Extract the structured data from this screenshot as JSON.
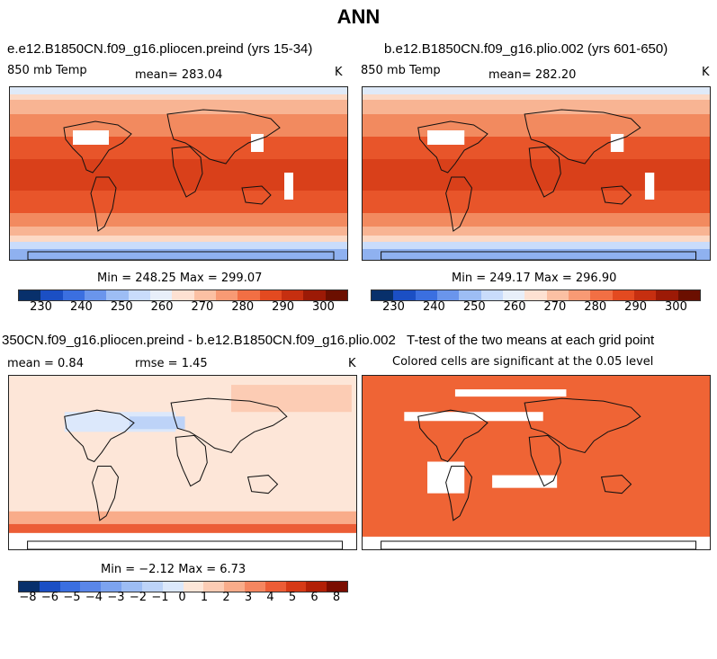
{
  "title": "ANN",
  "panel1": {
    "title": "e.e12.B1850CN.f09_g16.pliocen.preind (yrs 15-34)",
    "variable": "850 mb Temp",
    "mean": "mean= 283.04",
    "units": "K",
    "minmax": "Min = 248.25 Max = 299.07"
  },
  "panel2": {
    "title": "b.e12.B1850CN.f09_g16.plio.002 (yrs 601-650)",
    "variable": "850 mb Temp",
    "mean": "mean= 282.20",
    "units": "K",
    "minmax": "Min = 249.17 Max = 296.90"
  },
  "panel3": {
    "title": "350CN.f09_g16.pliocen.preind - b.e12.B1850CN.f09_g16.plio.002",
    "mean": "mean =    0.84",
    "rmse": "rmse =    1.45",
    "units": "K",
    "minmax": "Min =  −2.12 Max =    6.73"
  },
  "panel4": {
    "title": "T-test of the two means at each grid point",
    "subtitle": "Colored cells are significant at the 0.05 level"
  },
  "colorbar_abs": {
    "ticks": [
      "230",
      "240",
      "250",
      "260",
      "270",
      "280",
      "290",
      "300"
    ],
    "colors": [
      "#08306b",
      "#1b4fc4",
      "#3b6fe0",
      "#6a95ec",
      "#9dbdf4",
      "#c9dcfb",
      "#e8eff9",
      "#fde1d2",
      "#fbc0a3",
      "#f89a74",
      "#f26f44",
      "#e34a20",
      "#c62f10",
      "#9c1a06",
      "#6b0f00"
    ]
  },
  "colorbar_diff": {
    "ticks": [
      "−8",
      "−6",
      "−5",
      "−4",
      "−3",
      "−2",
      "−1",
      "0",
      "1",
      "2",
      "3",
      "4",
      "5",
      "6",
      "8"
    ],
    "colors": [
      "#08306b",
      "#1b4fc4",
      "#3b6fe0",
      "#5a86e8",
      "#7ca3ef",
      "#9dbdf4",
      "#bdd3f8",
      "#dce8fb",
      "#fde6d8",
      "#fcccb4",
      "#f9ac8a",
      "#f58660",
      "#ec5d36",
      "#d63a16",
      "#b22006",
      "#7a0d00"
    ]
  },
  "ttest_color": "#ef6435"
}
